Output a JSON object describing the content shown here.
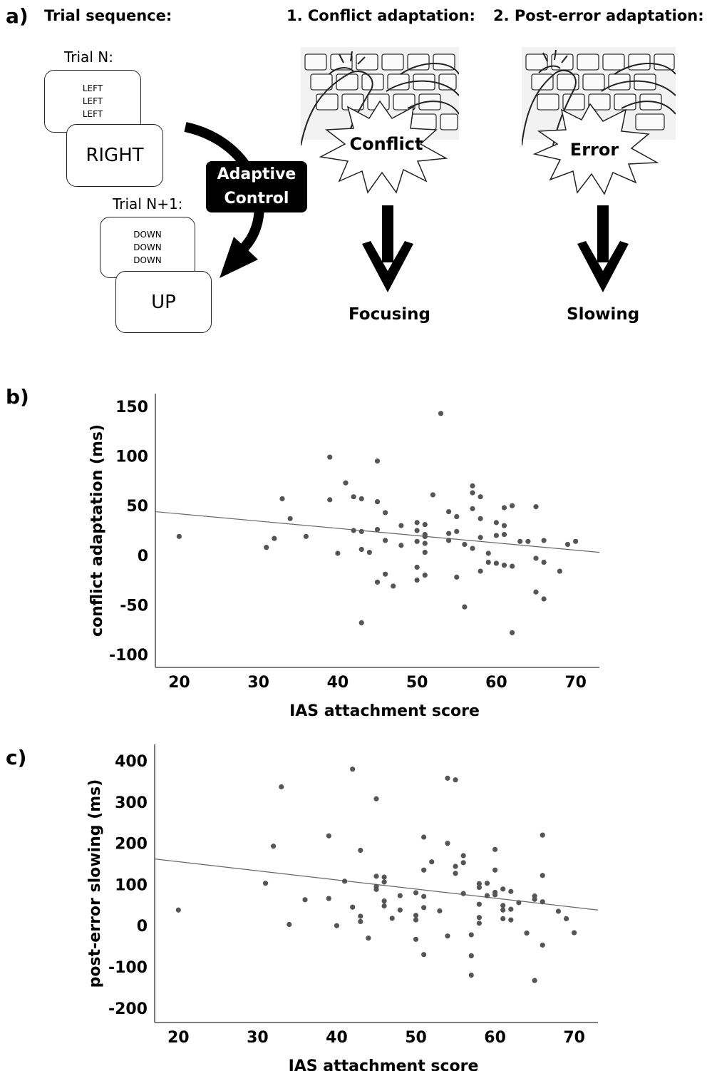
{
  "panel_a": {
    "label": "a)",
    "trial_sequence_title": "Trial sequence:",
    "trial_n_label": "Trial N:",
    "trial_n_flankers": [
      "LEFT",
      "LEFT",
      "LEFT"
    ],
    "trial_n_target": "RIGHT",
    "trial_n1_label": "Trial N+1:",
    "trial_n1_flankers": [
      "DOWN",
      "DOWN",
      "DOWN"
    ],
    "trial_n1_target": "UP",
    "adaptive_control_line1": "Adaptive",
    "adaptive_control_line2": "Control",
    "conflict_title": "1. Conflict adaptation:",
    "conflict_burst": "Conflict",
    "conflict_outcome": "Focusing",
    "error_title": "2. Post-error adaptation:",
    "error_burst": "Error",
    "error_outcome": "Slowing"
  },
  "chart_data": [
    {
      "panel_label": "b)",
      "type": "scatter",
      "xlabel": "IAS attachment score",
      "ylabel": "conflict adaptation (ms)",
      "xlim": [
        17,
        73
      ],
      "ylim": [
        -113,
        163
      ],
      "xticks": [
        20,
        30,
        40,
        50,
        60,
        70
      ],
      "yticks": [
        150,
        100,
        50,
        0,
        -50,
        -100
      ],
      "fit_line": {
        "x": [
          17,
          73
        ],
        "y": [
          44,
          3
        ]
      },
      "point_color": "#555555",
      "points": [
        [
          20,
          19
        ],
        [
          31,
          8
        ],
        [
          32,
          17
        ],
        [
          33,
          57
        ],
        [
          34,
          37
        ],
        [
          36,
          19
        ],
        [
          39,
          99
        ],
        [
          39,
          56
        ],
        [
          40,
          2
        ],
        [
          41,
          73
        ],
        [
          42,
          59
        ],
        [
          42,
          25
        ],
        [
          43,
          57
        ],
        [
          43,
          24
        ],
        [
          43,
          6
        ],
        [
          43,
          -68
        ],
        [
          44,
          3
        ],
        [
          45,
          95
        ],
        [
          45,
          54
        ],
        [
          45,
          26
        ],
        [
          45,
          -27
        ],
        [
          46,
          43
        ],
        [
          46,
          15
        ],
        [
          46,
          -19
        ],
        [
          47,
          -31
        ],
        [
          48,
          30
        ],
        [
          48,
          10
        ],
        [
          50,
          33
        ],
        [
          50,
          25
        ],
        [
          50,
          14
        ],
        [
          50,
          -12
        ],
        [
          50,
          -25
        ],
        [
          51,
          31
        ],
        [
          51,
          21
        ],
        [
          51,
          19
        ],
        [
          51,
          12
        ],
        [
          51,
          3
        ],
        [
          51,
          -20
        ],
        [
          52,
          61
        ],
        [
          53,
          143
        ],
        [
          54,
          44
        ],
        [
          54,
          22
        ],
        [
          54,
          15
        ],
        [
          55,
          39
        ],
        [
          55,
          24
        ],
        [
          55,
          -22
        ],
        [
          56,
          11
        ],
        [
          56,
          -52
        ],
        [
          57,
          70
        ],
        [
          57,
          63
        ],
        [
          57,
          47
        ],
        [
          57,
          7
        ],
        [
          58,
          59
        ],
        [
          58,
          37
        ],
        [
          58,
          18
        ],
        [
          58,
          -16
        ],
        [
          59,
          2
        ],
        [
          59,
          -7
        ],
        [
          60,
          20
        ],
        [
          60,
          33
        ],
        [
          60,
          -8
        ],
        [
          61,
          48
        ],
        [
          61,
          30
        ],
        [
          61,
          21
        ],
        [
          61,
          -10
        ],
        [
          62,
          50
        ],
        [
          62,
          -11
        ],
        [
          62,
          -78
        ],
        [
          63,
          14
        ],
        [
          64,
          14
        ],
        [
          65,
          49
        ],
        [
          65,
          -3
        ],
        [
          65,
          -37
        ],
        [
          66,
          15
        ],
        [
          66,
          -7
        ],
        [
          66,
          -44
        ],
        [
          68,
          -16
        ],
        [
          69,
          11
        ],
        [
          70,
          14
        ]
      ]
    },
    {
      "panel_label": "c)",
      "type": "scatter",
      "xlabel": "IAS attachment score",
      "ylabel": "post-error slowing (ms)",
      "xlim": [
        17,
        73
      ],
      "ylim": [
        -235,
        440
      ],
      "xticks": [
        20,
        30,
        40,
        50,
        60,
        70
      ],
      "yticks": [
        400,
        300,
        200,
        100,
        0,
        -100,
        -200
      ],
      "fit_line": {
        "x": [
          17,
          73
        ],
        "y": [
          162,
          38
        ]
      },
      "point_color": "#555555",
      "points": [
        [
          20,
          38
        ],
        [
          31,
          103
        ],
        [
          32,
          193
        ],
        [
          33,
          337
        ],
        [
          34,
          3
        ],
        [
          36,
          63
        ],
        [
          39,
          218
        ],
        [
          39,
          66
        ],
        [
          40,
          0
        ],
        [
          41,
          108
        ],
        [
          42,
          380
        ],
        [
          42,
          45
        ],
        [
          43,
          183
        ],
        [
          43,
          23
        ],
        [
          43,
          10
        ],
        [
          44,
          -30
        ],
        [
          45,
          308
        ],
        [
          45,
          120
        ],
        [
          45,
          95
        ],
        [
          45,
          88
        ],
        [
          46,
          118
        ],
        [
          46,
          106
        ],
        [
          46,
          60
        ],
        [
          46,
          48
        ],
        [
          47,
          18
        ],
        [
          48,
          73
        ],
        [
          48,
          38
        ],
        [
          50,
          80
        ],
        [
          50,
          25
        ],
        [
          50,
          14
        ],
        [
          50,
          -33
        ],
        [
          51,
          215
        ],
        [
          51,
          135
        ],
        [
          51,
          71
        ],
        [
          51,
          44
        ],
        [
          51,
          -70
        ],
        [
          52,
          155
        ],
        [
          53,
          36
        ],
        [
          54,
          358
        ],
        [
          54,
          200
        ],
        [
          54,
          -25
        ],
        [
          55,
          354
        ],
        [
          55,
          144
        ],
        [
          55,
          127
        ],
        [
          56,
          170
        ],
        [
          56,
          153
        ],
        [
          56,
          78
        ],
        [
          57,
          -22
        ],
        [
          57,
          -73
        ],
        [
          57,
          -120
        ],
        [
          58,
          102
        ],
        [
          58,
          93
        ],
        [
          58,
          52
        ],
        [
          58,
          20
        ],
        [
          58,
          6
        ],
        [
          59,
          103
        ],
        [
          59,
          73
        ],
        [
          60,
          185
        ],
        [
          60,
          135
        ],
        [
          60,
          81
        ],
        [
          60,
          75
        ],
        [
          61,
          89
        ],
        [
          61,
          49
        ],
        [
          61,
          38
        ],
        [
          61,
          17
        ],
        [
          62,
          83
        ],
        [
          62,
          40
        ],
        [
          62,
          14
        ],
        [
          63,
          56
        ],
        [
          64,
          -18
        ],
        [
          65,
          72
        ],
        [
          65,
          64
        ],
        [
          65,
          -133
        ],
        [
          66,
          220
        ],
        [
          66,
          122
        ],
        [
          66,
          58
        ],
        [
          66,
          -47
        ],
        [
          68,
          35
        ],
        [
          69,
          17
        ],
        [
          70,
          -17
        ]
      ]
    }
  ]
}
